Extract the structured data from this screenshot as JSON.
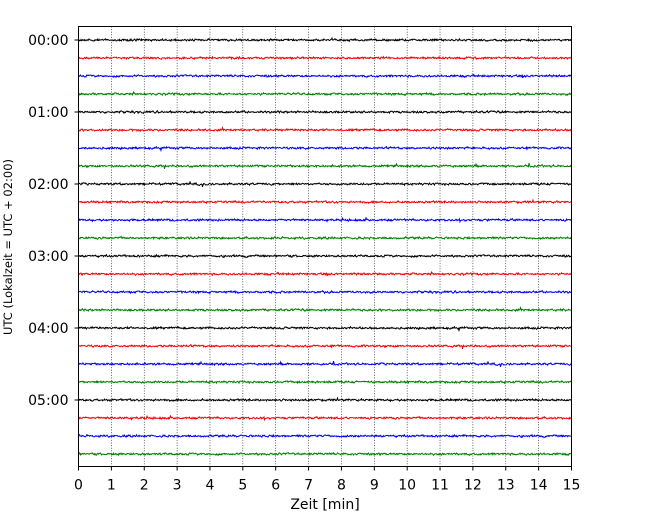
{
  "chart_data": {
    "type": "line",
    "title": "",
    "xlabel": "Zeit  [min]",
    "ylabel": "UTC (Lokalzeit = UTC + 02:00)",
    "xlim": [
      0,
      15
    ],
    "x_ticks": [
      "0",
      "1",
      "2",
      "3",
      "4",
      "5",
      "6",
      "7",
      "8",
      "9",
      "10",
      "11",
      "12",
      "13",
      "14",
      "15"
    ],
    "y_tick_labels": [
      "00:00",
      "01:00",
      "02:00",
      "03:00",
      "04:00",
      "05:00"
    ],
    "rows_per_hour": 4,
    "row_minutes": 15,
    "row_count": 24,
    "trace_color_cycle": [
      "#000000",
      "#ff0000",
      "#0000ff",
      "#008000"
    ],
    "x_grid": true,
    "grid_style": "dotted",
    "signal": "seismic noise traces, low amplitude"
  }
}
